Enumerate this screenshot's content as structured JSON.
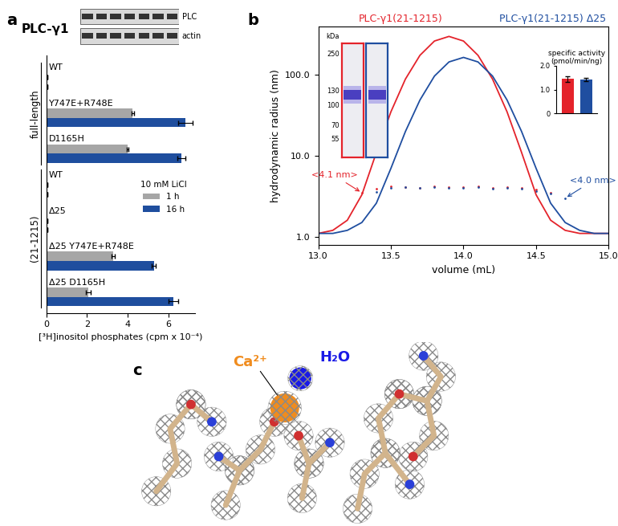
{
  "chart_data": [
    {
      "panel": "a",
      "type": "bar",
      "orientation": "horizontal",
      "title": "PLC-γ1",
      "blot": {
        "labels": [
          "PLC",
          "actin"
        ],
        "lanes": 7
      },
      "categories": [
        "WT",
        "Y747E+R748E",
        "D1165H",
        "WT",
        "Δ25",
        "Δ25 Y747E+R748E",
        "Δ25 D1165H"
      ],
      "groups": [
        {
          "name": "full-length",
          "members": [
            "WT",
            "Y747E+R748E",
            "D1165H"
          ]
        },
        {
          "name": "(21-1215)",
          "members": [
            "WT",
            "Δ25",
            "Δ25 Y747E+R748E",
            "Δ25 D1165H"
          ]
        }
      ],
      "series": [
        {
          "name": "1 h",
          "color": "#a6a6a6",
          "values": [
            0.05,
            4.25,
            4.0,
            0.05,
            0.05,
            3.3,
            2.05
          ],
          "errors": [
            0.01,
            0.05,
            0.05,
            0.01,
            0.01,
            0.08,
            0.12
          ]
        },
        {
          "name": "16 h",
          "color": "#1f4e9e",
          "values": [
            0.05,
            6.85,
            6.65,
            0.05,
            0.05,
            5.3,
            6.25
          ],
          "errors": [
            0.01,
            0.35,
            0.2,
            0.01,
            0.01,
            0.1,
            0.25
          ]
        }
      ],
      "legend": "center right",
      "legend_title": "10 mM LiCl",
      "xlabel": "[³H]inositol phosphates (cpm x 10⁻⁴)",
      "xlim": [
        0,
        7.3
      ],
      "xticks": [
        0,
        2,
        4,
        6
      ],
      "tick_labels": "x",
      "grid": false
    },
    {
      "panel": "b",
      "type": "line",
      "xlabel": "volume (mL)",
      "ylabel": "hydrodynamic radius (nm)",
      "log": "y",
      "xlim": [
        13.0,
        15.0
      ],
      "xticks": [
        {
          "value": 13.0,
          "label": "13.0"
        },
        {
          "value": 13.5,
          "label": "13.5"
        },
        {
          "value": 14.0,
          "label": "14.0"
        },
        {
          "value": 14.5,
          "label": "14.5"
        },
        {
          "value": 15.0,
          "label": "15.0"
        }
      ],
      "ylim": [
        0.8,
        400
      ],
      "yticks": [
        {
          "value": 1.0,
          "label": "1.0"
        },
        {
          "value": 10.0,
          "label": "10.0"
        },
        {
          "value": 100.0,
          "label": "100.0"
        }
      ],
      "x": [
        13.0,
        13.1,
        13.2,
        13.3,
        13.4,
        13.5,
        13.6,
        13.7,
        13.8,
        13.9,
        14.0,
        14.1,
        14.2,
        14.3,
        14.4,
        14.5,
        14.6,
        14.7,
        14.8,
        14.9,
        15.0
      ],
      "series": [
        {
          "name": "PLC-γ1(21-1215)",
          "color": "#e4232b",
          "values": [
            1.1,
            1.2,
            1.6,
            3.3,
            11,
            35,
            89,
            175,
            263,
            300,
            263,
            175,
            89,
            35,
            11,
            3.3,
            1.6,
            1.2,
            1.1,
            1.1,
            1.1
          ],
          "radius_x": [
            13.3,
            13.4,
            13.5,
            13.6,
            13.7,
            13.8,
            13.9,
            14.0,
            14.1,
            14.2,
            14.3,
            14.4,
            14.5,
            14.6
          ],
          "radius_values": [
            3.5,
            3.9,
            4.2,
            4.1,
            4.0,
            4.2,
            4.1,
            4.1,
            4.2,
            4.0,
            4.1,
            4.0,
            3.8,
            3.5
          ],
          "radius_label": "<4.1 nm>"
        },
        {
          "name": "PLC-γ1(21-1215) Δ25",
          "color": "#1f4ea0",
          "values": [
            1.1,
            1.1,
            1.2,
            1.5,
            2.6,
            7,
            20,
            49,
            97,
            145,
            165,
            145,
            97,
            49,
            20,
            7,
            2.6,
            1.5,
            1.2,
            1.1,
            1.1
          ],
          "radius_x": [
            13.4,
            13.5,
            13.6,
            13.7,
            13.8,
            13.9,
            14.0,
            14.1,
            14.2,
            14.3,
            14.4,
            14.5,
            14.6,
            14.7
          ],
          "radius_values": [
            3.6,
            4.0,
            4.1,
            4.0,
            4.1,
            4.0,
            4.0,
            4.1,
            3.9,
            4.0,
            3.9,
            3.7,
            3.4,
            3.0
          ],
          "radius_label": "<4.0 nm>"
        }
      ],
      "gel": {
        "unit_label": "kDa",
        "markers": [
          250,
          130,
          100,
          70,
          55
        ]
      }
    },
    {
      "type": "bar",
      "title": "specific activity\n(pmol/min/ng)",
      "categories": [
        null,
        null
      ],
      "values": [
        1.45,
        1.42
      ],
      "errors": [
        0.12,
        0.08
      ],
      "colors": [
        "#e4232b",
        "#1f4ea0"
      ],
      "ylim": [
        0,
        2.0
      ],
      "yticks": [
        0,
        {
          "value": 1.0,
          "label": "1.0"
        },
        {
          "value": 2.0,
          "label": "2.0"
        }
      ]
    }
  ],
  "structure_panel": {
    "panel": "c",
    "labels": [
      {
        "text": "Ca²⁺",
        "color": "#f08c1e"
      },
      {
        "text": "H₂O",
        "color": "#1a1ae6"
      }
    ]
  }
}
